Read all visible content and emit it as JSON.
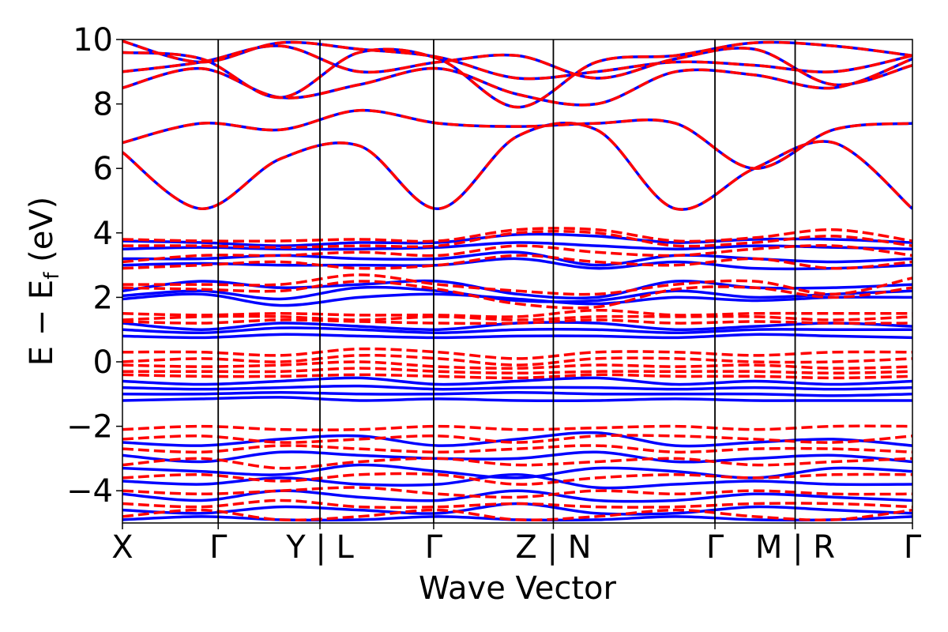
{
  "chart_data": {
    "type": "line",
    "title": "",
    "xlabel": "Wave Vector",
    "ylabel_main": "E − E",
    "ylabel_sub": "f",
    "ylabel_unit": " (eV)",
    "ylim": [
      -5,
      10
    ],
    "yticks": [
      -4,
      -2,
      0,
      2,
      4,
      6,
      8,
      10
    ],
    "ytick_labels": [
      "−4",
      "−2",
      "0",
      "2",
      "4",
      "6",
      "8",
      "10"
    ],
    "xlim": [
      0,
      6.6
    ],
    "kpoint_positions": [
      0,
      0.8,
      1.65,
      2.6,
      3.6,
      4.95,
      5.62,
      6.6
    ],
    "kpoint_labels": [
      "X",
      "Γ",
      "Y | L",
      "Γ",
      "Z | N",
      "Γ",
      "M | R",
      "Γ"
    ],
    "segment_bounds": [
      [
        0,
        1.65
      ],
      [
        1.65,
        3.6
      ],
      [
        3.6,
        5.62
      ],
      [
        5.62,
        6.6
      ]
    ],
    "series_styles": [
      {
        "name": "bands-solid",
        "color": "#0000ff",
        "dash": "solid"
      },
      {
        "name": "bands-dashed",
        "color": "#ff0000",
        "dash": "dashed"
      }
    ],
    "shared_bands": [
      {
        "name": "cond-1",
        "values": [
          6.5,
          4.75,
          6.3,
          6.7,
          4.75,
          7.0,
          7.2,
          4.75,
          6.0,
          6.8,
          4.75
        ]
      },
      {
        "name": "cond-2",
        "values": [
          6.8,
          7.4,
          7.2,
          7.8,
          7.4,
          7.3,
          7.4,
          7.4,
          6.0,
          7.2,
          7.4
        ]
      },
      {
        "name": "cond-3",
        "values": [
          8.5,
          9.1,
          8.2,
          8.6,
          9.1,
          8.3,
          8.0,
          9.0,
          8.9,
          8.5,
          9.4
        ]
      },
      {
        "name": "cond-4",
        "values": [
          9.0,
          9.3,
          9.8,
          9.0,
          9.3,
          9.5,
          8.8,
          9.4,
          9.7,
          8.6,
          9.2
        ]
      },
      {
        "name": "cond-5",
        "values": [
          9.6,
          9.4,
          8.2,
          9.6,
          9.4,
          7.9,
          9.3,
          9.5,
          9.9,
          9.8,
          9.5
        ]
      },
      {
        "name": "cond-6",
        "values": [
          9.95,
          9.3,
          9.9,
          9.7,
          9.45,
          8.8,
          9.0,
          9.3,
          9.2,
          9.0,
          9.5
        ]
      }
    ],
    "solid_bands": [
      {
        "name": "s-1",
        "values": [
          3.75,
          3.7,
          3.6,
          3.7,
          3.7,
          3.95,
          3.9,
          3.7,
          3.8,
          3.8,
          3.7
        ]
      },
      {
        "name": "s-2",
        "values": [
          3.5,
          3.55,
          3.5,
          3.5,
          3.55,
          3.7,
          3.6,
          3.5,
          3.6,
          3.55,
          3.5
        ]
      },
      {
        "name": "s-3",
        "values": [
          3.2,
          3.2,
          3.3,
          3.2,
          3.2,
          3.4,
          3.0,
          3.3,
          3.2,
          3.1,
          3.2
        ]
      },
      {
        "name": "s-4",
        "values": [
          3.0,
          3.05,
          3.0,
          3.0,
          3.0,
          3.2,
          2.9,
          3.1,
          2.9,
          2.9,
          3.0
        ]
      },
      {
        "name": "s-5",
        "values": [
          2.2,
          2.5,
          2.3,
          2.4,
          2.5,
          2.1,
          2.0,
          2.5,
          2.3,
          2.3,
          2.4
        ]
      },
      {
        "name": "s-6",
        "values": [
          2.05,
          2.2,
          1.95,
          2.3,
          2.2,
          1.9,
          1.9,
          2.2,
          2.0,
          2.1,
          2.2
        ]
      },
      {
        "name": "s-7",
        "values": [
          1.95,
          2.1,
          1.75,
          2.0,
          2.1,
          1.95,
          1.8,
          2.0,
          1.9,
          2.0,
          2.0
        ]
      },
      {
        "name": "s-8",
        "values": [
          1.2,
          1.0,
          1.2,
          1.1,
          1.0,
          1.2,
          1.2,
          1.0,
          1.1,
          1.2,
          1.1
        ]
      },
      {
        "name": "s-9",
        "values": [
          1.0,
          0.9,
          1.05,
          1.0,
          0.9,
          1.0,
          1.0,
          0.9,
          1.0,
          1.0,
          1.0
        ]
      },
      {
        "name": "s-10",
        "values": [
          0.8,
          0.75,
          0.85,
          0.8,
          0.75,
          0.8,
          0.8,
          0.75,
          0.85,
          0.8,
          0.75
        ]
      },
      {
        "name": "s-11",
        "values": [
          -0.6,
          -0.7,
          -0.6,
          -0.5,
          -0.7,
          -0.6,
          -0.5,
          -0.7,
          -0.6,
          -0.7,
          -0.6
        ]
      },
      {
        "name": "s-12",
        "values": [
          -0.8,
          -0.85,
          -0.8,
          -0.75,
          -0.85,
          -0.8,
          -0.8,
          -0.85,
          -0.8,
          -0.85,
          -0.8
        ]
      },
      {
        "name": "s-13",
        "values": [
          -1.0,
          -1.0,
          -0.95,
          -1.0,
          -1.0,
          -0.95,
          -1.0,
          -1.0,
          -1.0,
          -1.05,
          -1.0
        ]
      },
      {
        "name": "s-14",
        "values": [
          -1.2,
          -1.15,
          -1.1,
          -1.2,
          -1.15,
          -1.2,
          -1.2,
          -1.15,
          -1.2,
          -1.2,
          -1.2
        ]
      },
      {
        "name": "s-15",
        "values": [
          -2.5,
          -2.6,
          -2.4,
          -2.3,
          -2.6,
          -2.4,
          -2.2,
          -2.6,
          -2.5,
          -2.4,
          -2.6
        ]
      },
      {
        "name": "s-16",
        "values": [
          -2.9,
          -3.1,
          -2.8,
          -2.9,
          -3.0,
          -3.0,
          -2.8,
          -3.1,
          -3.0,
          -2.9,
          -3.1
        ]
      },
      {
        "name": "s-17",
        "values": [
          -3.3,
          -3.4,
          -3.5,
          -3.2,
          -3.4,
          -3.6,
          -3.3,
          -3.4,
          -3.6,
          -3.3,
          -3.4
        ]
      },
      {
        "name": "s-18",
        "values": [
          -3.7,
          -3.8,
          -3.6,
          -3.8,
          -3.8,
          -3.5,
          -3.9,
          -3.8,
          -3.7,
          -3.8,
          -3.8
        ]
      },
      {
        "name": "s-19",
        "values": [
          -4.1,
          -4.3,
          -4.0,
          -4.2,
          -4.3,
          -4.0,
          -4.3,
          -4.3,
          -4.1,
          -4.2,
          -4.3
        ]
      },
      {
        "name": "s-20",
        "values": [
          -4.6,
          -4.7,
          -4.5,
          -4.6,
          -4.7,
          -4.4,
          -4.7,
          -4.7,
          -4.5,
          -4.6,
          -4.7
        ]
      },
      {
        "name": "s-21",
        "values": [
          -4.9,
          -4.8,
          -4.9,
          -4.9,
          -4.8,
          -4.9,
          -4.9,
          -4.8,
          -4.9,
          -4.9,
          -4.8
        ]
      }
    ],
    "dashed_bands": [
      {
        "name": "d-1",
        "values": [
          3.8,
          3.75,
          3.75,
          3.8,
          3.75,
          4.1,
          4.1,
          3.75,
          3.85,
          4.1,
          3.75
        ]
      },
      {
        "name": "d-2",
        "values": [
          3.6,
          3.6,
          3.55,
          3.6,
          3.6,
          4.0,
          4.0,
          3.6,
          3.7,
          3.9,
          3.6
        ]
      },
      {
        "name": "d-3",
        "values": [
          3.1,
          3.3,
          3.3,
          3.4,
          3.3,
          3.6,
          3.4,
          3.3,
          3.5,
          3.6,
          3.3
        ]
      },
      {
        "name": "d-4",
        "values": [
          2.9,
          3.0,
          3.1,
          2.9,
          3.0,
          3.3,
          3.1,
          3.0,
          3.2,
          2.9,
          3.1
        ]
      },
      {
        "name": "d-5",
        "values": [
          2.4,
          2.4,
          2.4,
          2.7,
          2.4,
          2.2,
          2.1,
          2.4,
          2.5,
          2.1,
          2.6
        ]
      },
      {
        "name": "d-6",
        "values": [
          2.3,
          2.25,
          2.2,
          2.5,
          2.25,
          1.8,
          1.7,
          2.25,
          2.3,
          2.0,
          2.3
        ]
      },
      {
        "name": "d-7",
        "values": [
          1.5,
          1.45,
          1.5,
          1.45,
          1.45,
          1.4,
          1.6,
          1.45,
          1.5,
          1.5,
          1.5
        ]
      },
      {
        "name": "d-8",
        "values": [
          1.3,
          1.4,
          1.4,
          1.3,
          1.4,
          1.3,
          1.4,
          1.4,
          1.4,
          1.3,
          1.4
        ]
      },
      {
        "name": "d-9",
        "values": [
          1.25,
          1.2,
          1.3,
          1.25,
          1.2,
          1.2,
          1.3,
          1.2,
          1.25,
          1.2,
          1.2
        ]
      },
      {
        "name": "d-10",
        "values": [
          0.3,
          0.3,
          0.2,
          0.4,
          0.3,
          0.1,
          0.3,
          0.3,
          0.2,
          0.3,
          0.3
        ]
      },
      {
        "name": "d-11",
        "values": [
          0.0,
          0.1,
          0.0,
          0.2,
          0.1,
          -0.1,
          0.1,
          0.1,
          0.0,
          0.0,
          0.1
        ]
      },
      {
        "name": "d-12",
        "values": [
          -0.1,
          -0.15,
          -0.1,
          0.0,
          -0.15,
          -0.2,
          -0.1,
          -0.15,
          -0.1,
          -0.2,
          -0.15
        ]
      },
      {
        "name": "d-13",
        "values": [
          -0.3,
          -0.3,
          -0.3,
          -0.2,
          -0.3,
          -0.35,
          -0.3,
          -0.3,
          -0.3,
          -0.35,
          -0.3
        ]
      },
      {
        "name": "d-14",
        "values": [
          -0.4,
          -0.45,
          -0.45,
          -0.4,
          -0.45,
          -0.5,
          -0.4,
          -0.45,
          -0.45,
          -0.5,
          -0.45
        ]
      },
      {
        "name": "d-15",
        "values": [
          -2.1,
          -2.0,
          -2.1,
          -2.1,
          -2.0,
          -2.1,
          -2.05,
          -2.0,
          -2.1,
          -2.0,
          -2.0
        ]
      },
      {
        "name": "d-16",
        "values": [
          -2.4,
          -2.3,
          -2.5,
          -2.4,
          -2.3,
          -2.5,
          -2.3,
          -2.3,
          -2.4,
          -2.5,
          -2.3
        ]
      },
      {
        "name": "d-17",
        "values": [
          -2.7,
          -2.8,
          -2.6,
          -2.7,
          -2.8,
          -2.7,
          -2.6,
          -2.8,
          -2.7,
          -2.7,
          -2.8
        ]
      },
      {
        "name": "d-18",
        "values": [
          -3.2,
          -3.0,
          -3.3,
          -3.1,
          -3.0,
          -3.2,
          -3.1,
          -3.0,
          -3.2,
          -3.1,
          -3.0
        ]
      },
      {
        "name": "d-19",
        "values": [
          -3.6,
          -3.5,
          -3.7,
          -3.5,
          -3.5,
          -3.8,
          -3.6,
          -3.5,
          -3.6,
          -3.5,
          -3.5
        ]
      },
      {
        "name": "d-20",
        "values": [
          -4.0,
          -4.1,
          -4.0,
          -3.9,
          -4.1,
          -4.2,
          -4.0,
          -4.1,
          -4.0,
          -4.1,
          -4.1
        ]
      },
      {
        "name": "d-21",
        "values": [
          -4.4,
          -4.5,
          -4.3,
          -4.5,
          -4.5,
          -4.4,
          -4.5,
          -4.5,
          -4.4,
          -4.4,
          -4.5
        ]
      },
      {
        "name": "d-22",
        "values": [
          -4.8,
          -4.6,
          -4.9,
          -4.8,
          -4.6,
          -4.9,
          -4.8,
          -4.6,
          -4.8,
          -4.9,
          -4.6
        ]
      }
    ]
  }
}
